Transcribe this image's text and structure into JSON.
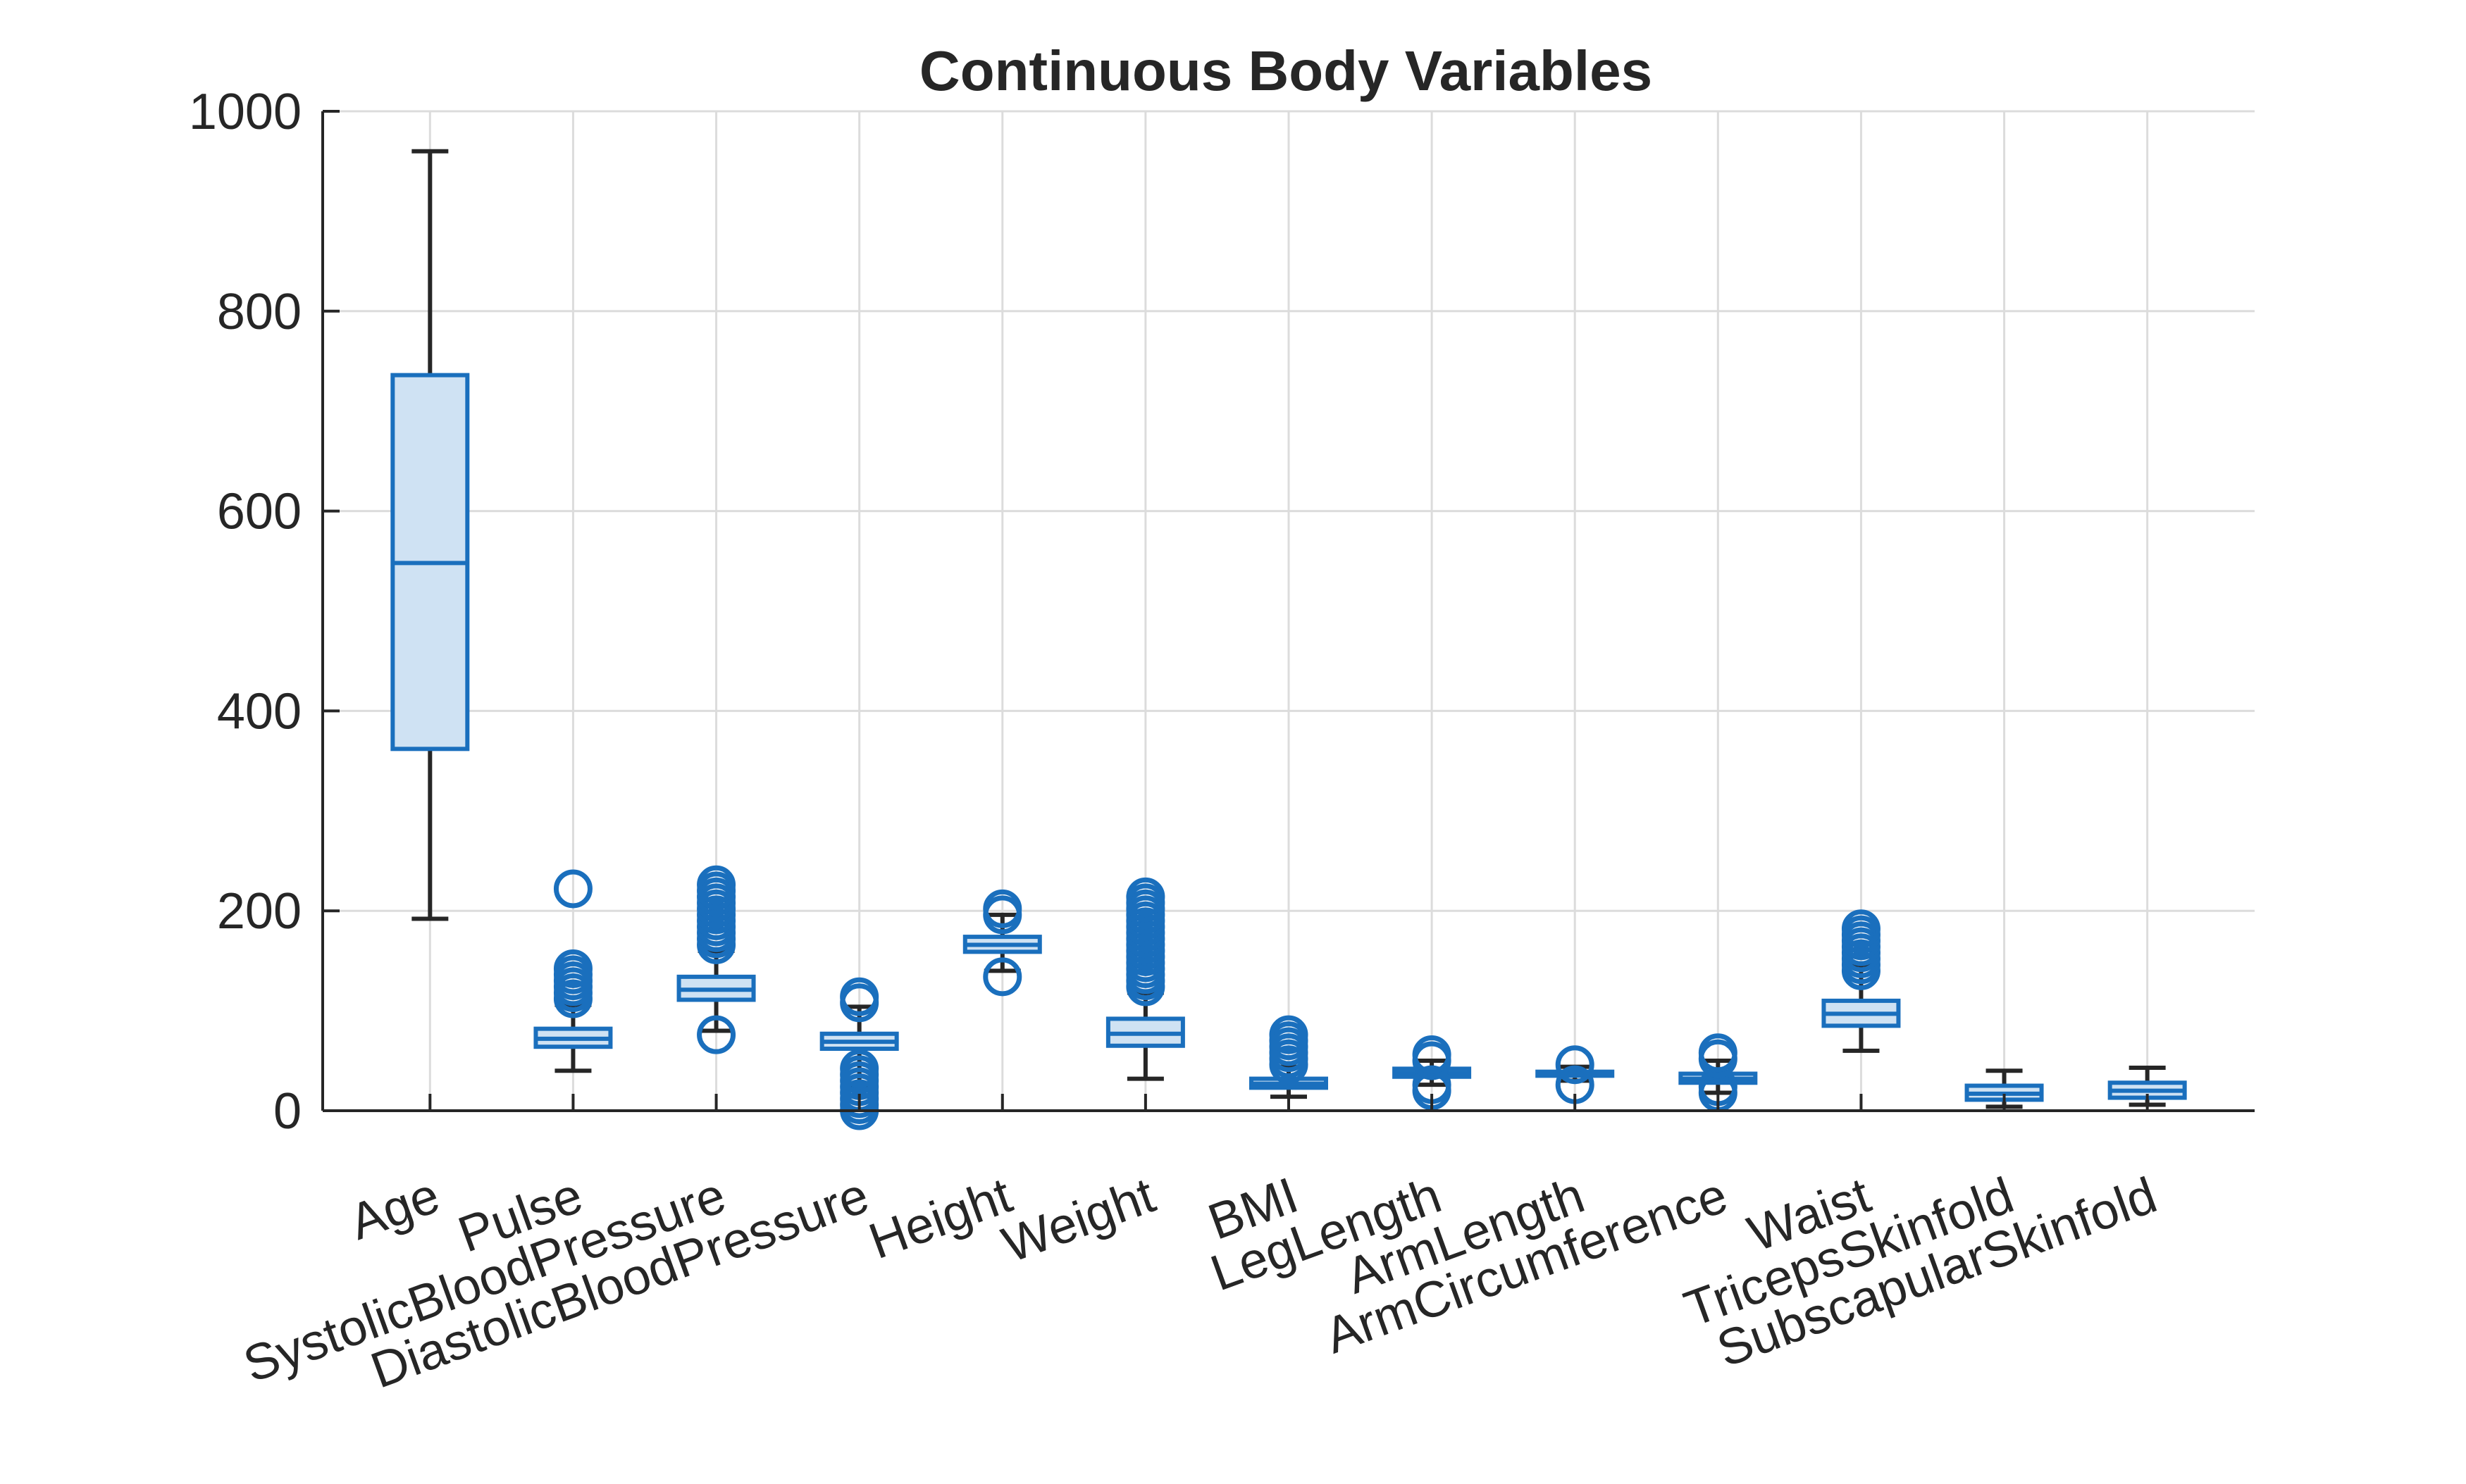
{
  "chart_data": {
    "type": "boxplot",
    "title": "Continuous Body Variables",
    "xlabel": "",
    "ylabel": "",
    "ylim": [
      0,
      1000
    ],
    "yticks": [
      0,
      200,
      400,
      600,
      800,
      1000
    ],
    "grid": true,
    "colors": {
      "box_edge": "#1a6fbd",
      "box_fill": "#cfe2f3",
      "whisker": "#262626",
      "outlier": "#1a6fbd"
    },
    "categories": [
      "Age",
      "Pulse",
      "SystolicBloodPressure",
      "DiastolicBloodPressure",
      "Height",
      "Weight",
      "BMI",
      "LegLength",
      "ArmLength",
      "ArmCircumference",
      "Waist",
      "TricepsSkinfold",
      "SubscapularSkinfold"
    ],
    "boxes": [
      {
        "category": "Age",
        "whisker_low": 192,
        "q1": 362,
        "median": 548,
        "q3": 736,
        "whisker_high": 960,
        "outliers": []
      },
      {
        "category": "Pulse",
        "whisker_low": 40,
        "q1": 64,
        "median": 72,
        "q3": 82,
        "whisker_high": 106,
        "outliers": [
          112,
          118,
          124,
          130,
          136,
          142,
          222
        ]
      },
      {
        "category": "SystolicBloodPressure",
        "whisker_low": 80,
        "q1": 111,
        "median": 121,
        "q3": 134,
        "whisker_high": 160,
        "outliers": [
          76,
          166,
          172,
          178,
          184,
          190,
          196,
          202,
          208,
          214,
          220,
          226
        ]
      },
      {
        "category": "DiastolicBloodPressure",
        "whisker_low": 24,
        "q1": 62,
        "median": 69,
        "q3": 77,
        "whisker_high": 104,
        "outliers": [
          0,
          6,
          12,
          18,
          24,
          30,
          36,
          42,
          108,
          114
        ]
      },
      {
        "category": "Height",
        "whisker_low": 140,
        "q1": 159,
        "median": 166,
        "q3": 174,
        "whisker_high": 196,
        "outliers": [
          134,
          196,
          202
        ]
      },
      {
        "category": "Weight",
        "whisker_low": 32,
        "q1": 65,
        "median": 77,
        "q3": 92,
        "whisker_high": 118,
        "outliers": [
          124,
          130,
          136,
          142,
          148,
          154,
          160,
          166,
          172,
          178,
          184,
          190,
          196,
          202,
          208,
          214
        ]
      },
      {
        "category": "BMI",
        "whisker_low": 14,
        "q1": 23,
        "median": 27,
        "q3": 32,
        "whisker_high": 44,
        "outliers": [
          46,
          52,
          58,
          64,
          70,
          76
        ]
      },
      {
        "category": "LegLength",
        "whisker_low": 26,
        "q1": 34,
        "median": 38,
        "q3": 42,
        "whisker_high": 50,
        "outliers": [
          20,
          26,
          50,
          56
        ]
      },
      {
        "category": "ArmLength",
        "whisker_low": 30,
        "q1": 35,
        "median": 37,
        "q3": 39,
        "whisker_high": 44,
        "outliers": [
          26,
          46
        ]
      },
      {
        "category": "ArmCircumference",
        "whisker_low": 18,
        "q1": 28,
        "median": 32,
        "q3": 37,
        "whisker_high": 50,
        "outliers": [
          18,
          24,
          52,
          58
        ]
      },
      {
        "category": "Waist",
        "whisker_low": 60,
        "q1": 85,
        "median": 97,
        "q3": 110,
        "whisker_high": 146,
        "outliers": [
          140,
          146,
          152,
          158,
          164,
          170,
          176,
          182
        ]
      },
      {
        "category": "TricepsSkinfold",
        "whisker_low": 4,
        "q1": 11,
        "median": 17,
        "q3": 25,
        "whisker_high": 40,
        "outliers": []
      },
      {
        "category": "SubscapularSkinfold",
        "whisker_low": 6,
        "q1": 13,
        "median": 20,
        "q3": 28,
        "whisker_high": 43,
        "outliers": []
      }
    ]
  }
}
